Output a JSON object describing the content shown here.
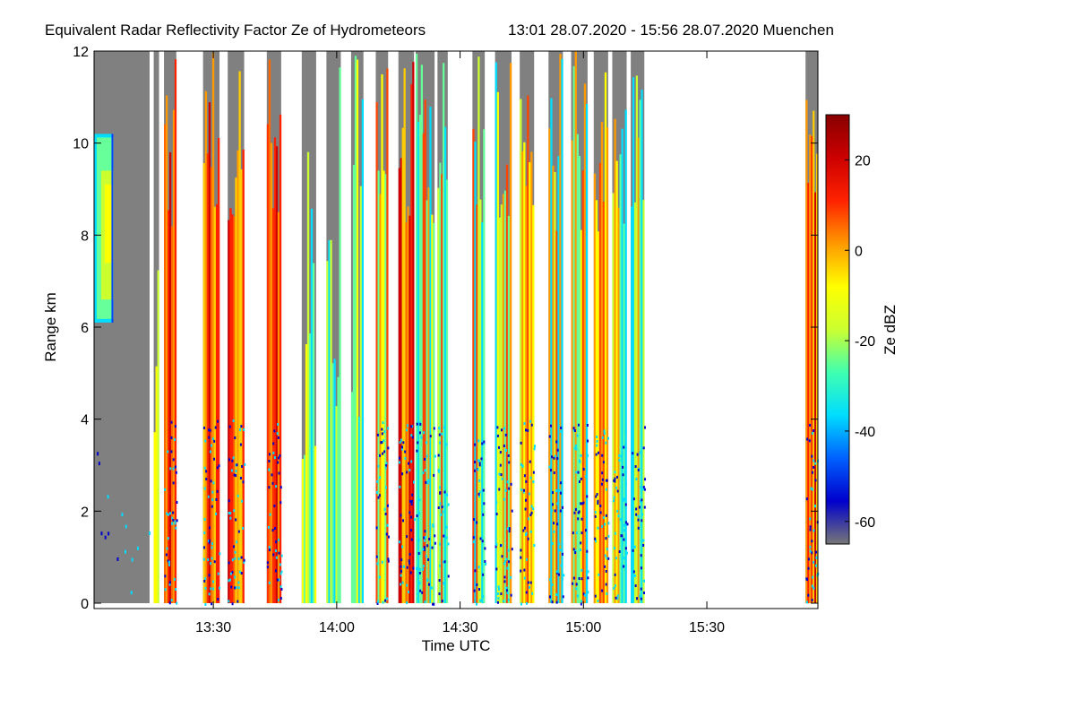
{
  "chart_data": {
    "type": "heatmap",
    "title": "Equivalent Radar Reflectivity Factor Ze of Hydrometeors",
    "subtitle": "13:01 28.07.2020 - 15:56 28.07.2020 Muenchen",
    "xlabel": "Time UTC",
    "ylabel": "Range km",
    "x_range_min": [
      781,
      957
    ],
    "y_range_km": [
      0,
      12
    ],
    "x_ticks": [
      {
        "label": "13:30",
        "minute": 810
      },
      {
        "label": "14:00",
        "minute": 840
      },
      {
        "label": "14:30",
        "minute": 870
      },
      {
        "label": "15:00",
        "minute": 900
      },
      {
        "label": "15:30",
        "minute": 930
      }
    ],
    "y_ticks": [
      {
        "label": "0",
        "value": 0
      },
      {
        "label": "2",
        "value": 2
      },
      {
        "label": "4",
        "value": 4
      },
      {
        "label": "6",
        "value": 6
      },
      {
        "label": "8",
        "value": 8
      },
      {
        "label": "10",
        "value": 10
      },
      {
        "label": "12",
        "value": 12
      }
    ],
    "colorbar": {
      "label": "Ze dBZ",
      "range_dbz": [
        -65,
        30
      ],
      "ticks": [
        {
          "label": "20",
          "value": 20
        },
        {
          "label": "0",
          "value": 0
        },
        {
          "label": "-20",
          "value": -20
        },
        {
          "label": "-40",
          "value": -40
        },
        {
          "label": "-60",
          "value": -60
        }
      ],
      "colors": [
        "#777777",
        "#0000cc",
        "#0060ff",
        "#00ddff",
        "#40ffb0",
        "#ccff30",
        "#ffff00",
        "#ff9900",
        "#ff2200",
        "#cc0000",
        "#880000"
      ]
    },
    "background_color": "#808080",
    "gap_color": "#ffffff",
    "segments": [
      {
        "start": 781.0,
        "end": 794.5,
        "profile": "cirrus"
      },
      {
        "start": 795.5,
        "end": 796.8,
        "profile": "light"
      },
      {
        "start": 798.0,
        "end": 801.0,
        "profile": "intense"
      },
      {
        "start": 807.5,
        "end": 811.5,
        "profile": "intense"
      },
      {
        "start": 813.5,
        "end": 817.5,
        "profile": "intense"
      },
      {
        "start": 823.0,
        "end": 826.5,
        "profile": "intense"
      },
      {
        "start": 831.5,
        "end": 835.0,
        "profile": "light"
      },
      {
        "start": 837.5,
        "end": 841.0,
        "profile": "light"
      },
      {
        "start": 843.5,
        "end": 846.5,
        "profile": "light"
      },
      {
        "start": 849.5,
        "end": 852.5,
        "profile": "moderate"
      },
      {
        "start": 855.0,
        "end": 858.8,
        "profile": "intense"
      },
      {
        "start": 859.2,
        "end": 863.8,
        "profile": "moderate"
      },
      {
        "start": 864.5,
        "end": 867.0,
        "profile": "moderate"
      },
      {
        "start": 873.0,
        "end": 876.0,
        "profile": "moderate"
      },
      {
        "start": 878.5,
        "end": 882.5,
        "profile": "moderate"
      },
      {
        "start": 884.5,
        "end": 888.0,
        "profile": "moderate"
      },
      {
        "start": 891.5,
        "end": 895.0,
        "profile": "moderate"
      },
      {
        "start": 897.0,
        "end": 901.0,
        "profile": "moderate"
      },
      {
        "start": 902.5,
        "end": 906.0,
        "profile": "moderate"
      },
      {
        "start": 907.0,
        "end": 910.5,
        "profile": "moderate"
      },
      {
        "start": 911.5,
        "end": 914.8,
        "profile": "moderate"
      },
      {
        "start": 954.0,
        "end": 957.0,
        "profile": "intense"
      }
    ]
  }
}
